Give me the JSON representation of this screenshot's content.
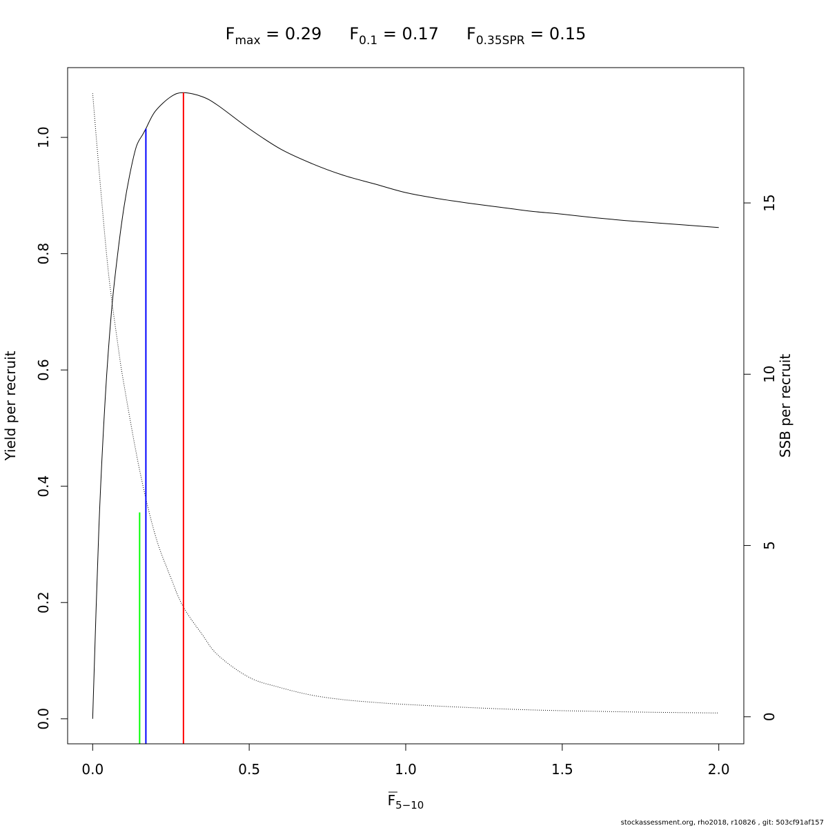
{
  "title": {
    "fmax": {
      "base": "F",
      "sub": "max",
      "value": " = 0.29"
    },
    "f01": {
      "base": "F",
      "sub": "0.1",
      "value": " = 0.17"
    },
    "fspr": {
      "base": "F",
      "sub": "0.35SPR",
      "value": " = 0.15"
    }
  },
  "footer": "stockassessment.org, rho2018, r10826 , git: 503cf91af157",
  "chart_data": {
    "type": "line",
    "xlabel": {
      "base": "F",
      "sub": "5−10",
      "overline": true
    },
    "ylabel_left": "Yield per recruit",
    "ylabel_right": "SSB per recruit",
    "xlim": [
      -0.08,
      2.08
    ],
    "ylim_left": [
      -0.043,
      1.12
    ],
    "ylim_right": [
      -0.79,
      18.95
    ],
    "x_ticks": [
      "0.0",
      "0.5",
      "1.0",
      "1.5",
      "2.0"
    ],
    "y_left_ticks": [
      "0.0",
      "0.2",
      "0.4",
      "0.6",
      "0.8",
      "1.0"
    ],
    "y_right_ticks": [
      "0",
      "5",
      "10",
      "15"
    ],
    "series": [
      {
        "axis": "left",
        "style": "solid",
        "color": "#000000",
        "x": [
          0.0,
          0.02,
          0.04,
          0.06,
          0.08,
          0.1,
          0.12,
          0.14,
          0.16,
          0.17,
          0.2,
          0.25,
          0.29,
          0.35,
          0.4,
          0.5,
          0.6,
          0.7,
          0.8,
          0.9,
          1.0,
          1.1,
          1.2,
          1.3,
          1.4,
          1.5,
          1.6,
          1.7,
          1.8,
          1.9,
          2.0
        ],
        "y": [
          0.0,
          0.33,
          0.55,
          0.7,
          0.8,
          0.88,
          0.94,
          0.985,
          1.005,
          1.015,
          1.045,
          1.07,
          1.077,
          1.07,
          1.055,
          1.015,
          0.98,
          0.955,
          0.935,
          0.92,
          0.905,
          0.895,
          0.887,
          0.88,
          0.873,
          0.868,
          0.862,
          0.857,
          0.853,
          0.849,
          0.845
        ]
      },
      {
        "axis": "right",
        "style": "dotted",
        "color": "#000000",
        "x": [
          0.0,
          0.02,
          0.05,
          0.08,
          0.1,
          0.15,
          0.2,
          0.25,
          0.29,
          0.35,
          0.4,
          0.5,
          0.6,
          0.7,
          0.8,
          0.9,
          1.0,
          1.2,
          1.4,
          1.6,
          1.8,
          2.0
        ],
        "y": [
          18.2,
          16.0,
          13.0,
          10.9,
          9.7,
          7.2,
          5.3,
          4.05,
          3.2,
          2.4,
          1.8,
          1.15,
          0.85,
          0.63,
          0.5,
          0.42,
          0.36,
          0.27,
          0.2,
          0.16,
          0.13,
          0.11
        ]
      }
    ],
    "reference_lines": [
      {
        "name": "Fmax",
        "x": 0.29,
        "y_top": 1.077,
        "color": "#ff0000"
      },
      {
        "name": "F0.1",
        "x": 0.17,
        "y_top": 1.015,
        "color": "#0000ff"
      },
      {
        "name": "F0.35SPR",
        "x": 0.15,
        "y_top": 0.355,
        "color": "#00ff00"
      }
    ],
    "grid": false
  }
}
